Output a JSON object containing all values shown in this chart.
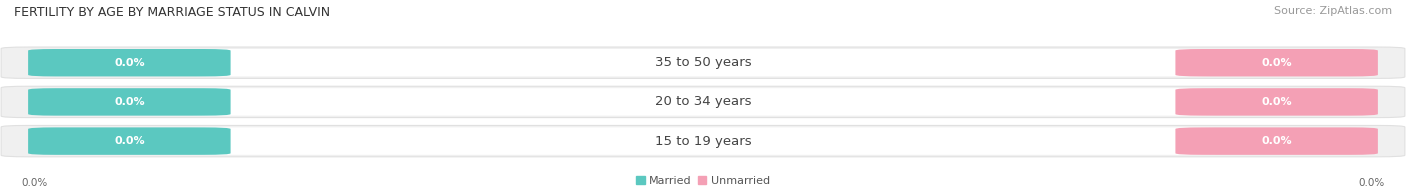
{
  "title": "FERTILITY BY AGE BY MARRIAGE STATUS IN CALVIN",
  "source": "Source: ZipAtlas.com",
  "categories": [
    "15 to 19 years",
    "20 to 34 years",
    "35 to 50 years"
  ],
  "married_values": [
    0.0,
    0.0,
    0.0
  ],
  "unmarried_values": [
    0.0,
    0.0,
    0.0
  ],
  "married_color": "#5bc8c0",
  "unmarried_color": "#f4a0b5",
  "bar_bg_color": "#f0f0f0",
  "bar_bg_edge_color": "#e0e0e0",
  "center_bg_color": "#ffffff",
  "title_fontsize": 9,
  "source_fontsize": 8,
  "label_fontsize": 8,
  "cat_fontsize": 9.5,
  "background_color": "#ffffff",
  "legend_married": "Married",
  "legend_unmarried": "Unmarried",
  "x_tick_left": "0.0%",
  "x_tick_right": "0.0%"
}
